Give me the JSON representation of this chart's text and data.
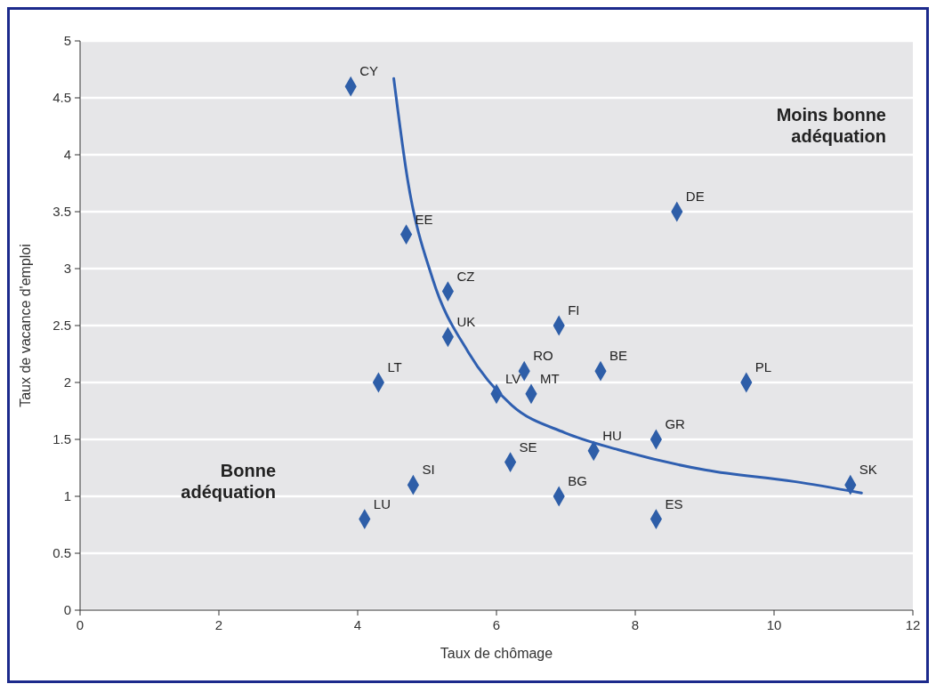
{
  "chart_data": {
    "type": "scatter",
    "xlabel": "Taux de chômage",
    "ylabel": "Taux de vacance d'emploi",
    "xlim": [
      0,
      12
    ],
    "xticks": [
      0,
      2,
      4,
      6,
      8,
      10,
      12
    ],
    "ylim": [
      0,
      5
    ],
    "yticks": [
      0,
      0.5,
      1,
      1.5,
      2,
      2.5,
      3,
      3.5,
      4,
      4.5,
      5
    ],
    "grid": "y",
    "marker": "diamond",
    "series": [
      {
        "color": "#2e5ea8",
        "x": [
          3.9,
          4.7,
          5.3,
          5.3,
          4.3,
          6.0,
          6.4,
          6.5,
          6.9,
          7.5,
          8.6,
          9.6,
          7.4,
          8.3,
          11.1,
          6.2,
          6.9,
          8.3,
          4.8,
          4.1
        ],
        "values": [
          4.6,
          3.3,
          2.8,
          2.4,
          2.0,
          1.9,
          2.1,
          1.9,
          2.5,
          2.1,
          3.5,
          2.0,
          1.4,
          1.5,
          1.1,
          1.3,
          1.0,
          0.8,
          1.1,
          0.8
        ]
      },
      {
        "type": "line",
        "color": "#2f5fb0",
        "line_style": "solid",
        "marker": "none",
        "x": [
          4.52,
          4.72,
          5.08,
          5.59,
          6.22,
          6.98,
          7.75,
          9.02,
          10.29,
          11.26
        ],
        "values": [
          4.67,
          3.78,
          2.91,
          2.27,
          1.8,
          1.56,
          1.41,
          1.23,
          1.13,
          1.03
        ]
      }
    ],
    "annotations": [
      "Moins bonne adéquation",
      "Bonne adéquation",
      {
        "text": "CY",
        "x": 3.9,
        "y": 4.6
      },
      {
        "text": "EE",
        "x": 4.7,
        "y": 3.3
      },
      {
        "text": "CZ",
        "x": 5.3,
        "y": 2.8
      },
      {
        "text": "UK",
        "x": 5.3,
        "y": 2.4
      },
      {
        "text": "LT",
        "x": 4.3,
        "y": 2.0
      },
      {
        "text": "LV",
        "x": 6.0,
        "y": 1.9
      },
      {
        "text": "RO",
        "x": 6.4,
        "y": 2.1
      },
      {
        "text": "MT",
        "x": 6.5,
        "y": 1.9
      },
      {
        "text": "FI",
        "x": 6.9,
        "y": 2.5
      },
      {
        "text": "BE",
        "x": 7.5,
        "y": 2.1
      },
      {
        "text": "DE",
        "x": 8.6,
        "y": 3.5
      },
      {
        "text": "PL",
        "x": 9.6,
        "y": 2.0
      },
      {
        "text": "HU",
        "x": 7.4,
        "y": 1.4
      },
      {
        "text": "GR",
        "x": 8.3,
        "y": 1.5
      },
      {
        "text": "SK",
        "x": 11.1,
        "y": 1.1
      },
      {
        "text": "SE",
        "x": 6.2,
        "y": 1.3
      },
      {
        "text": "BG",
        "x": 6.9,
        "y": 1.0
      },
      {
        "text": "ES",
        "x": 8.3,
        "y": 0.8
      },
      {
        "text": "SI",
        "x": 4.8,
        "y": 1.1
      },
      {
        "text": "LU",
        "x": 4.1,
        "y": 0.8
      }
    ]
  }
}
